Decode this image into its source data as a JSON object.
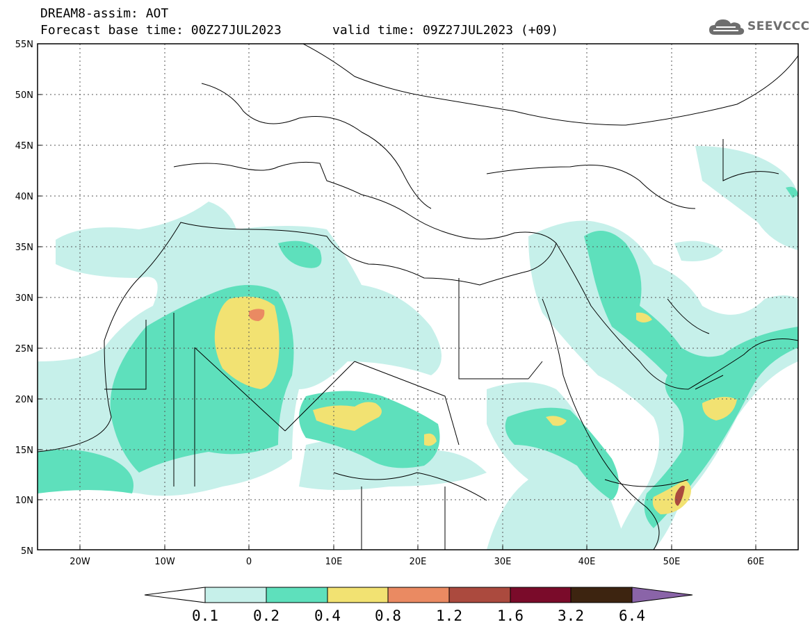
{
  "header": {
    "title": "DREAM8-assim: AOT",
    "base_time": "Forecast base time: 00Z27JUL2023",
    "valid_time": "valid time: 09Z27JUL2023 (+09)"
  },
  "logo": {
    "text": "SEEVCCC",
    "icon": "cloud-icon"
  },
  "map": {
    "lat_labels": [
      "55N",
      "50N",
      "45N",
      "40N",
      "35N",
      "30N",
      "25N",
      "20N",
      "15N",
      "10N",
      "5N"
    ],
    "lon_labels": [
      "20W",
      "10W",
      "0",
      "10E",
      "20E",
      "30E",
      "40E",
      "50E",
      "60E"
    ],
    "lon_range": [
      -25,
      65
    ],
    "lat_range": [
      5,
      55
    ],
    "gridlines": "dotted"
  },
  "colorbar": {
    "levels": [
      "0.1",
      "0.2",
      "0.4",
      "0.8",
      "1.2",
      "1.6",
      "3.2",
      "6.4"
    ],
    "colors": [
      "#ffffff",
      "#c6f0ea",
      "#5ee0bc",
      "#f2e272",
      "#ea8a62",
      "#ab4a3e",
      "#7a0b2a",
      "#3d2410",
      "#8a64a8"
    ]
  }
}
